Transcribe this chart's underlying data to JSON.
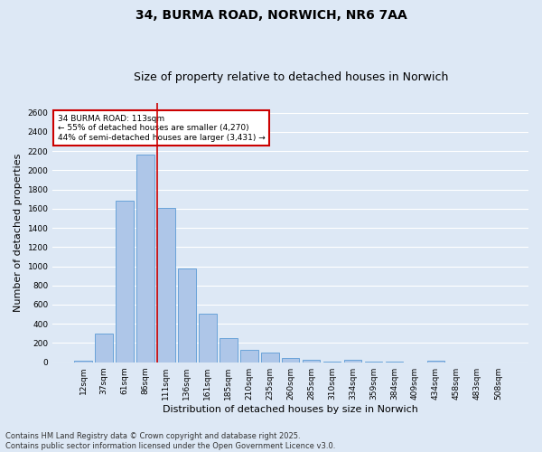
{
  "title": "34, BURMA ROAD, NORWICH, NR6 7AA",
  "subtitle": "Size of property relative to detached houses in Norwich",
  "xlabel": "Distribution of detached houses by size in Norwich",
  "ylabel": "Number of detached properties",
  "categories": [
    "12sqm",
    "37sqm",
    "61sqm",
    "86sqm",
    "111sqm",
    "136sqm",
    "161sqm",
    "185sqm",
    "210sqm",
    "235sqm",
    "260sqm",
    "285sqm",
    "310sqm",
    "334sqm",
    "359sqm",
    "384sqm",
    "409sqm",
    "434sqm",
    "458sqm",
    "483sqm",
    "508sqm"
  ],
  "values": [
    20,
    300,
    1680,
    2160,
    1610,
    975,
    510,
    248,
    125,
    105,
    40,
    30,
    5,
    25,
    5,
    5,
    0,
    20,
    0,
    0,
    0
  ],
  "bar_color": "#aec6e8",
  "bar_edge_color": "#5b9bd5",
  "bar_width": 0.85,
  "property_line_index": 4,
  "property_line_color": "#cc0000",
  "annotation_text": "34 BURMA ROAD: 113sqm\n← 55% of detached houses are smaller (4,270)\n44% of semi-detached houses are larger (3,431) →",
  "annotation_box_color": "#ffffff",
  "annotation_box_edge_color": "#cc0000",
  "ylim": [
    0,
    2700
  ],
  "yticks": [
    0,
    200,
    400,
    600,
    800,
    1000,
    1200,
    1400,
    1600,
    1800,
    2000,
    2200,
    2400,
    2600
  ],
  "background_color": "#dde8f5",
  "grid_color": "#ffffff",
  "footer": "Contains HM Land Registry data © Crown copyright and database right 2025.\nContains public sector information licensed under the Open Government Licence v3.0.",
  "title_fontsize": 10,
  "subtitle_fontsize": 9,
  "label_fontsize": 8,
  "tick_fontsize": 6.5,
  "annot_fontsize": 6.5,
  "footer_fontsize": 6.0
}
